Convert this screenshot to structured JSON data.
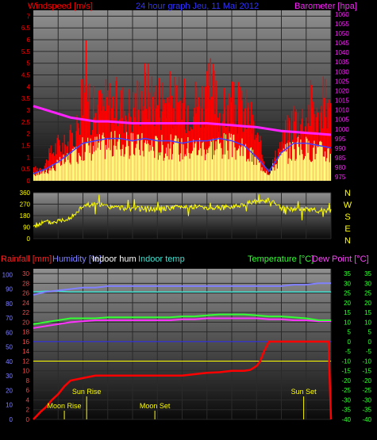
{
  "colors": {
    "background": "#000000",
    "panel_top": "#909090",
    "panel_bottom": "#0a0a0a",
    "grid": "#2a2a2a",
    "axis_x_text": "#000000",
    "wind_red": "#ff0000",
    "wind_yellow": "#ffff80",
    "wind_blue": "#4040ff",
    "barometer": "#ff22ff",
    "direction": "#ffff00",
    "direction_labels": "#ffff00",
    "rain": "#ff0000",
    "humidity": "#8080ff",
    "indoor_hum": "#40e0d0",
    "indoor_temp": "#00ffff",
    "temperature": "#33ff33",
    "dew_point": "#ff33ff",
    "sun_moon": "#ffff00",
    "rain_axis_text": "#ff4444",
    "hum_axis_text": "#8080ff",
    "temp_axis_text": "#33ff33"
  },
  "chart_data": [
    {
      "type": "line",
      "id": "wind_pressure",
      "title": "24 hour graph Jeu, 11 Mai 2012",
      "left_axis_label": "Windspeed [m/s]",
      "right_axis_label": "Barometer [hpa]",
      "x_ticks": [
        "02",
        "04",
        "06",
        "08",
        "10",
        "12",
        "14",
        "16",
        "18",
        "20",
        "22",
        "00"
      ],
      "left_ticks": [
        "0",
        "0.5",
        "1",
        "1.5",
        "2",
        "2.5",
        "3",
        "3.5",
        "4",
        "4.5",
        "5",
        "5.5",
        "6",
        "6.5",
        "7"
      ],
      "left_range": [
        0,
        7.25
      ],
      "right_ticks": [
        "975",
        "980",
        "985",
        "990",
        "995",
        "1000",
        "1005",
        "1010",
        "1015",
        "1020",
        "1025",
        "1030",
        "1035",
        "1040",
        "1045",
        "1050",
        "1055",
        "1060"
      ],
      "right_range": [
        973,
        1062
      ],
      "series": [
        {
          "name": "Barometer",
          "x_hours": [
            0,
            1,
            2,
            3,
            4,
            5,
            6,
            7,
            8,
            9,
            10,
            11,
            12,
            13,
            14,
            15,
            16,
            17,
            18,
            19,
            20,
            21,
            22,
            23,
            24
          ],
          "values": [
            1012,
            1010,
            1008,
            1006,
            1005,
            1004,
            1004,
            1003.5,
            1003,
            1003,
            1003,
            1003,
            1003,
            1003,
            1003,
            1002.5,
            1002,
            1001.5,
            1001,
            1000,
            999,
            998.5,
            998,
            997.5,
            997
          ]
        },
        {
          "name": "Wind gust envelope",
          "x_hours": [
            0,
            0.7,
            1,
            1.5,
            2,
            2.5,
            3,
            3.5,
            4,
            4.3,
            4.6,
            5,
            6,
            7,
            8,
            9,
            10,
            11,
            12,
            13,
            14,
            14.4,
            15,
            16,
            17,
            17.5,
            18,
            18.5,
            19,
            20,
            21,
            22,
            22.5,
            23,
            23.5,
            24
          ],
          "values": [
            0.6,
            0.8,
            1.0,
            1.7,
            2.1,
            2.0,
            2.4,
            3.0,
            5.6,
            6.2,
            4.2,
            4.0,
            4.6,
            4.4,
            4.2,
            5.4,
            4.8,
            4.8,
            4.4,
            4.6,
            4.8,
            5.5,
            3.9,
            4.3,
            4.2,
            3.7,
            2.5,
            1.5,
            0.5,
            2.2,
            3.7,
            3.6,
            4.8,
            3.2,
            4.9,
            3.6
          ]
        },
        {
          "name": "Wind average",
          "x_hours": [
            0,
            1,
            2,
            3,
            4,
            5,
            6,
            7,
            8,
            9,
            10,
            11,
            12,
            13,
            14,
            15,
            16,
            17,
            18,
            19,
            20,
            21,
            22,
            23,
            24
          ],
          "values": [
            0.3,
            0.5,
            0.8,
            1.2,
            1.6,
            1.7,
            1.8,
            1.8,
            1.7,
            1.8,
            1.7,
            1.7,
            1.6,
            1.7,
            1.7,
            1.8,
            1.7,
            1.5,
            1.0,
            0.4,
            1.2,
            1.6,
            1.6,
            1.5,
            1.4
          ]
        }
      ]
    },
    {
      "type": "line",
      "id": "direction",
      "left_ticks": [
        "0",
        "90",
        "180",
        "270",
        "360"
      ],
      "left_range": [
        0,
        360
      ],
      "right_labels": [
        "N",
        "W",
        "S",
        "E",
        "N"
      ],
      "x_ticks": [
        "02",
        "04",
        "06",
        "08",
        "10",
        "12",
        "14",
        "16",
        "18",
        "20",
        "22",
        "00"
      ],
      "series": [
        {
          "name": "Wind direction",
          "x_hours": [
            0,
            0.5,
            1,
            1.5,
            2,
            2.5,
            3,
            3.5,
            4,
            5,
            6,
            7,
            8,
            9,
            10,
            11,
            12,
            13,
            14,
            15,
            16,
            17,
            17.5,
            18,
            18.5,
            19,
            20,
            21,
            22,
            23,
            24
          ],
          "values": [
            100,
            115,
            130,
            125,
            140,
            150,
            170,
            200,
            260,
            270,
            250,
            240,
            235,
            235,
            230,
            240,
            250,
            250,
            245,
            240,
            250,
            270,
            280,
            290,
            295,
            300,
            240,
            230,
            230,
            220,
            220
          ]
        }
      ]
    },
    {
      "type": "line",
      "id": "temp_hum_rain",
      "legend": [
        "Rainfall [mm]",
        "Humidity [%]",
        "Indoor hum",
        "Indoor temp",
        "Temperature [°C]",
        "Dew Point [°C]"
      ],
      "rain_ticks": [
        "0",
        "2",
        "4",
        "6",
        "8",
        "10",
        "12",
        "14",
        "16",
        "18",
        "20",
        "22",
        "24",
        "26",
        "28",
        "30"
      ],
      "rain_range": [
        0,
        31
      ],
      "hum_ticks": [
        "0",
        "10",
        "20",
        "30",
        "40",
        "50",
        "60",
        "70",
        "80",
        "90",
        "100"
      ],
      "temp_ticks": [
        "-40",
        "-35",
        "-30",
        "-25",
        "-20",
        "-15",
        "-10",
        "-5",
        "0",
        "5",
        "10",
        "15",
        "20",
        "25",
        "30",
        "35"
      ],
      "temp_range": [
        -40,
        37.5
      ],
      "x_ticks": [
        "02",
        "04",
        "06",
        "08",
        "10",
        "12",
        "14",
        "16",
        "18",
        "20",
        "22",
        "00"
      ],
      "events": [
        {
          "label": "Moon Rise",
          "hour": 2.5,
          "row": "low"
        },
        {
          "label": "Sun Rise",
          "hour": 4.3,
          "row": "high"
        },
        {
          "label": "Moon Set",
          "hour": 9.8,
          "row": "low"
        },
        {
          "label": "Sun Set",
          "hour": 21.8,
          "row": "high"
        }
      ],
      "series": [
        {
          "name": "Rainfall",
          "x_hours": [
            0,
            0.3,
            0.6,
            1,
            1.5,
            2,
            2.5,
            3,
            4,
            5,
            6,
            7,
            8,
            9,
            10,
            11,
            12,
            13,
            14,
            15,
            16,
            17,
            17.5,
            18,
            18.3,
            18.6,
            19,
            20,
            21,
            22,
            23,
            23.8,
            24
          ],
          "values": [
            0,
            0.8,
            1.6,
            2.5,
            4.0,
            5.2,
            6.8,
            8.0,
            8.5,
            9.0,
            9.0,
            9.0,
            9.0,
            9.0,
            9.0,
            9.0,
            9.0,
            9.3,
            9.6,
            9.7,
            10.0,
            10.0,
            10.2,
            11.0,
            12.0,
            14.0,
            16.0,
            16.0,
            16.0,
            16.0,
            16.0,
            16.0,
            0
          ]
        },
        {
          "name": "Humidity",
          "x_hours": [
            0,
            1,
            2,
            3,
            4,
            5,
            6,
            7,
            8,
            9,
            10,
            11,
            12,
            13,
            14,
            15,
            16,
            17,
            18,
            19,
            20,
            21,
            22,
            23,
            24
          ],
          "values": [
            86,
            88,
            89,
            90,
            91,
            91,
            92,
            92,
            92,
            92,
            92,
            92,
            92,
            92,
            92,
            92,
            92,
            92,
            92,
            92,
            92,
            93,
            93,
            94,
            94
          ]
        },
        {
          "name": "Indoor hum",
          "x_hours": [
            0,
            1,
            2,
            3,
            4,
            5,
            6,
            7,
            8,
            9,
            10,
            11,
            12,
            13,
            14,
            15,
            16,
            17,
            18,
            19,
            20,
            21,
            22,
            23,
            24
          ],
          "values": [
            88,
            88.5,
            88.5,
            88,
            88,
            88,
            88,
            88,
            88,
            88,
            88,
            88,
            88,
            88,
            88,
            88,
            88,
            88,
            88,
            88,
            88,
            88,
            88,
            88,
            88
          ]
        },
        {
          "name": "Temperature",
          "x_hours": [
            0,
            1,
            2,
            3,
            4,
            5,
            6,
            7,
            8,
            9,
            10,
            11,
            12,
            13,
            14,
            15,
            16,
            17,
            18,
            19,
            20,
            21,
            22,
            23,
            24
          ],
          "values": [
            9,
            10,
            11,
            12,
            12,
            12,
            12.5,
            12.5,
            12.5,
            12.5,
            12.5,
            12.5,
            13,
            13,
            13.5,
            14,
            14,
            14,
            13.5,
            13,
            13,
            12.5,
            12,
            11,
            11
          ]
        },
        {
          "name": "Dew Point",
          "x_hours": [
            0,
            1,
            2,
            3,
            4,
            5,
            6,
            7,
            8,
            9,
            10,
            11,
            12,
            13,
            14,
            15,
            16,
            17,
            18,
            19,
            20,
            21,
            22,
            23,
            24
          ],
          "values": [
            7,
            8,
            9,
            10,
            10.5,
            11,
            11,
            11,
            11,
            11,
            11,
            11,
            11.5,
            11.5,
            12,
            12,
            12,
            12,
            12,
            11.5,
            11.5,
            11,
            11,
            10.5,
            10.5
          ]
        },
        {
          "name": "Indoor temp",
          "x_hours": [
            0,
            24
          ],
          "values": [
            -10,
            -10
          ]
        },
        {
          "name": "Zero line",
          "x_hours": [
            0,
            24
          ],
          "values": [
            0,
            0
          ]
        }
      ]
    }
  ]
}
